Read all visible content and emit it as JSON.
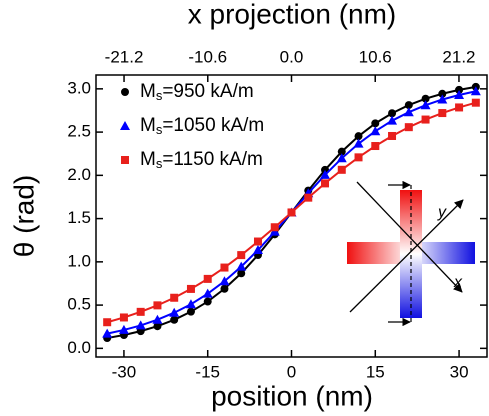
{
  "chart_data": {
    "type": "scatter",
    "xlabel": "position (nm)",
    "ylabel": "θ (rad)",
    "x2label": "x projection (nm)",
    "xlim": [
      -35,
      35
    ],
    "xticks": [
      -30,
      -15,
      0,
      15,
      30
    ],
    "x2lim": [
      -24.75,
      24.75
    ],
    "x2ticks": [
      -21.2,
      -10.6,
      {
        "value": 0,
        "label": "0.0"
      },
      10.6,
      21.2
    ],
    "ylim": [
      -0.1,
      3.16
    ],
    "yticks": [
      {
        "value": 0,
        "label": "0.0"
      },
      0.5,
      {
        "value": 1,
        "label": "1.0"
      },
      1.5,
      {
        "value": 2,
        "label": "2.0"
      },
      2.5,
      {
        "value": 3,
        "label": "3.0"
      }
    ],
    "legend": "upper left",
    "x": [
      -33,
      -30,
      -27,
      -24,
      -21,
      -18,
      -15,
      -12,
      -9,
      -6,
      -3,
      0,
      3,
      6,
      9,
      12,
      15,
      18,
      21,
      24,
      27,
      30,
      33
    ],
    "series": [
      {
        "name": "Ms=950 kA/m",
        "color": "#000000",
        "marker": "circle",
        "values": [
          0.119,
          0.154,
          0.199,
          0.256,
          0.33,
          0.424,
          0.541,
          0.689,
          0.868,
          1.079,
          1.318,
          1.571,
          1.824,
          2.063,
          2.274,
          2.453,
          2.601,
          2.718,
          2.812,
          2.886,
          2.943,
          2.988,
          3.023
        ]
      },
      {
        "name": "Ms=1050 kA/m",
        "color": "#0000ff",
        "marker": "triangle",
        "values": [
          0.17,
          0.213,
          0.265,
          0.331,
          0.412,
          0.51,
          0.632,
          0.776,
          0.945,
          1.137,
          1.349,
          1.571,
          1.793,
          2.005,
          2.197,
          2.366,
          2.51,
          2.632,
          2.73,
          2.811,
          2.877,
          2.929,
          2.972
        ]
      },
      {
        "name": "Ms=1150 kA/m",
        "color": "#e8201c",
        "marker": "square",
        "values": [
          0.302,
          0.357,
          0.422,
          0.497,
          0.585,
          0.687,
          0.803,
          0.934,
          1.078,
          1.235,
          1.4,
          1.571,
          1.742,
          1.907,
          2.064,
          2.208,
          2.339,
          2.455,
          2.557,
          2.645,
          2.72,
          2.785,
          2.84
        ]
      }
    ],
    "inset": {
      "x_label": "x",
      "y_label": "y"
    }
  }
}
